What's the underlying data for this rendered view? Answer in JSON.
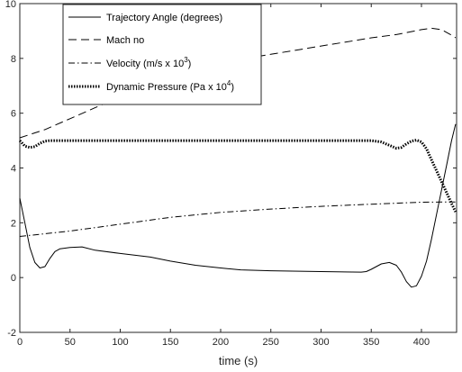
{
  "chart_data": {
    "type": "line",
    "title": "",
    "xlabel": "time (s)",
    "ylabel": "",
    "xlim": [
      0,
      435
    ],
    "ylim": [
      -2,
      10
    ],
    "xticks": [
      "0",
      "50",
      "100",
      "150",
      "200",
      "250",
      "300",
      "350",
      "400"
    ],
    "yticks": [
      "-2",
      "0",
      "2",
      "4",
      "6",
      "8",
      "10"
    ],
    "grid": false,
    "legend_position": "top-left",
    "series": [
      {
        "name": "Trajectory Angle (degrees)",
        "legend_main": "Trajectory Angle (degrees)",
        "legend_sup": "",
        "legend_tail": "",
        "style": "solid",
        "color": "#000000",
        "x": [
          0,
          5,
          10,
          15,
          20,
          25,
          30,
          35,
          40,
          50,
          62,
          75,
          100,
          130,
          150,
          175,
          200,
          220,
          250,
          300,
          340,
          345,
          350,
          360,
          368,
          375,
          380,
          385,
          390,
          395,
          400,
          405,
          410,
          415,
          420,
          425,
          430,
          434
        ],
        "y": [
          2.9,
          2.0,
          1.1,
          0.55,
          0.35,
          0.4,
          0.7,
          0.95,
          1.05,
          1.1,
          1.12,
          1.0,
          0.88,
          0.75,
          0.6,
          0.45,
          0.35,
          0.28,
          0.25,
          0.22,
          0.2,
          0.22,
          0.3,
          0.5,
          0.55,
          0.45,
          0.2,
          -0.15,
          -0.35,
          -0.3,
          0.05,
          0.6,
          1.4,
          2.3,
          3.2,
          4.1,
          5.0,
          5.6
        ]
      },
      {
        "name": "Mach no",
        "legend_main": "Mach no",
        "legend_sup": "",
        "legend_tail": "",
        "style": "dashed",
        "color": "#000000",
        "x": [
          0,
          25,
          50,
          75,
          100,
          125,
          150,
          175,
          200,
          225,
          250,
          275,
          300,
          325,
          350,
          375,
          400,
          410,
          420,
          430,
          434
        ],
        "y": [
          5.1,
          5.4,
          5.8,
          6.2,
          6.6,
          7.0,
          7.35,
          7.6,
          7.85,
          8.0,
          8.15,
          8.3,
          8.45,
          8.6,
          8.75,
          8.87,
          9.05,
          9.1,
          9.05,
          8.85,
          8.75
        ]
      },
      {
        "name": "Velocity (m/s x 10^3)",
        "legend_main": "Velocity (m/s x 10",
        "legend_sup": "3",
        "legend_tail": ")",
        "style": "dashdot",
        "color": "#000000",
        "x": [
          0,
          50,
          100,
          150,
          200,
          250,
          300,
          350,
          400,
          425,
          434
        ],
        "y": [
          1.5,
          1.7,
          1.95,
          2.2,
          2.38,
          2.5,
          2.6,
          2.68,
          2.75,
          2.76,
          2.76
        ]
      },
      {
        "name": "Dynamic Pressure (Pa x 10^4)",
        "legend_main": "Dynamic Pressure (Pa x 10",
        "legend_sup": "4",
        "legend_tail": ")",
        "style": "dotted",
        "color": "#000000",
        "x": [
          0,
          5,
          10,
          15,
          20,
          25,
          30,
          40,
          100,
          200,
          300,
          350,
          360,
          370,
          375,
          380,
          385,
          390,
          395,
          400,
          405,
          410,
          415,
          420,
          425,
          430,
          434
        ],
        "y": [
          5.0,
          4.8,
          4.75,
          4.78,
          4.9,
          4.98,
          5.0,
          5.0,
          5.0,
          5.0,
          5.0,
          5.0,
          4.95,
          4.8,
          4.72,
          4.75,
          4.88,
          4.98,
          5.02,
          4.95,
          4.7,
          4.3,
          3.9,
          3.5,
          3.1,
          2.7,
          2.4
        ]
      }
    ]
  }
}
